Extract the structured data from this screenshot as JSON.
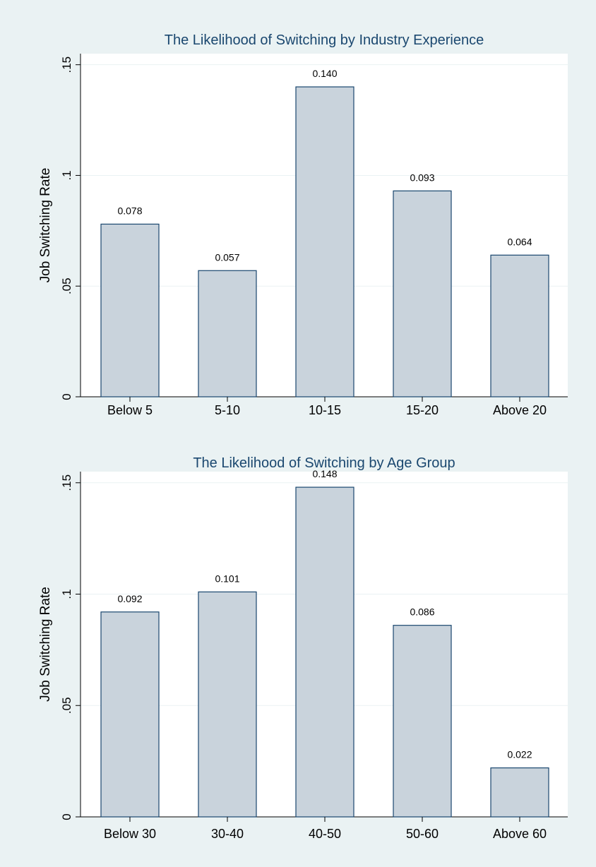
{
  "colors": {
    "background": "#eaf2f3",
    "plot_area": "#ffffff",
    "bar_fill": "#c9d3dc",
    "bar_stroke": "#1a476f",
    "title": "#1a476f",
    "gridline": "#eaf2f3"
  },
  "chart_data": [
    {
      "type": "bar",
      "title": "The Likelihood of Switching by Industry Experience",
      "xlabel": "",
      "ylabel": "Job Switching Rate",
      "categories": [
        "Below 5",
        "5-10",
        "10-15",
        "15-20",
        "Above 20"
      ],
      "values": [
        0.078,
        0.057,
        0.14,
        0.093,
        0.064
      ],
      "value_labels": [
        "0.078",
        "0.057",
        "0.140",
        "0.093",
        "0.064"
      ],
      "ylim": [
        0,
        0.155
      ],
      "yticks": [
        0,
        0.05,
        0.1,
        0.15
      ],
      "ytick_labels": [
        "0",
        ".05",
        ".1",
        ".15"
      ],
      "grid": true,
      "legend": "none"
    },
    {
      "type": "bar",
      "title": "The Likelihood of Switching by Age Group",
      "xlabel": "",
      "ylabel": "Job Switching Rate",
      "categories": [
        "Below 30",
        "30-40",
        "40-50",
        "50-60",
        "Above 60"
      ],
      "values": [
        0.092,
        0.101,
        0.148,
        0.086,
        0.022
      ],
      "value_labels": [
        "0.092",
        "0.101",
        "0.148",
        "0.086",
        "0.022"
      ],
      "ylim": [
        0,
        0.155
      ],
      "yticks": [
        0,
        0.05,
        0.1,
        0.15
      ],
      "ytick_labels": [
        "0",
        ".05",
        ".1",
        ".15"
      ],
      "grid": true,
      "legend": "none"
    }
  ]
}
